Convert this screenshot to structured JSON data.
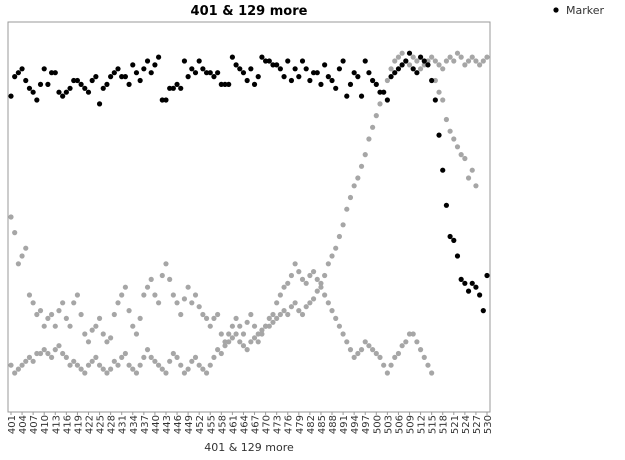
{
  "chart_data": {
    "type": "scatter",
    "title": "401 & 129 more",
    "x_label": "401 & 129 more",
    "categories": [
      "401",
      null,
      null,
      "404",
      null,
      null,
      "407",
      null,
      null,
      "410",
      null,
      null,
      "413",
      null,
      null,
      "416",
      null,
      null,
      "419",
      null,
      null,
      "422",
      null,
      null,
      "425",
      null,
      null,
      "428",
      null,
      null,
      "431",
      null,
      null,
      "434",
      null,
      null,
      "437",
      null,
      null,
      "440",
      null,
      null,
      "443",
      null,
      null,
      "446",
      null,
      null,
      "449",
      null,
      null,
      "452",
      null,
      null,
      "455",
      null,
      null,
      "458",
      null,
      null,
      "461",
      null,
      null,
      "464",
      null,
      null,
      "467",
      null,
      null,
      "470",
      null,
      null,
      "473",
      null,
      null,
      "476",
      null,
      null,
      "479",
      null,
      null,
      "482",
      null,
      null,
      "485",
      null,
      null,
      "488",
      null,
      null,
      "491",
      null,
      null,
      "494",
      null,
      null,
      "497",
      null,
      null,
      "500",
      null,
      null,
      "503",
      null,
      null,
      "506",
      null,
      null,
      "509",
      null,
      null,
      "512",
      null,
      null,
      "515",
      null,
      null,
      "518",
      null,
      null,
      "521",
      null,
      null,
      "524",
      null,
      null,
      "527",
      null,
      null,
      "530"
    ],
    "ylim": [
      0,
      100
    ],
    "series": [
      {
        "color": "#a6a6a6",
        "values": [
          12,
          10,
          11,
          12,
          13,
          14,
          13,
          15,
          15,
          16,
          15,
          14,
          16,
          17,
          15,
          14,
          12,
          13,
          12,
          11,
          10,
          12,
          13,
          14,
          12,
          11,
          10,
          11,
          13,
          12,
          14,
          15,
          12,
          11,
          10,
          12,
          14,
          16,
          14,
          13,
          12,
          11,
          10,
          13,
          15,
          14,
          12,
          10,
          11,
          13,
          14,
          12,
          11,
          10,
          12,
          14,
          16,
          15,
          17,
          18,
          19,
          20,
          18,
          17,
          16,
          18,
          19,
          20,
          21,
          22,
          22,
          23,
          24,
          25,
          26,
          25,
          27,
          28,
          26,
          25,
          27,
          28,
          29,
          31,
          33,
          35,
          38,
          40,
          42,
          45,
          48,
          52,
          55,
          58,
          60,
          63,
          66,
          70,
          73,
          76,
          79,
          82,
          85,
          88,
          90,
          91,
          92,
          90,
          89,
          91,
          90,
          88,
          89,
          90,
          91,
          90,
          89,
          88,
          90,
          91,
          90,
          92,
          91,
          89,
          90,
          91,
          90,
          89,
          90,
          91
        ]
      },
      {
        "color": "#a6a6a6",
        "values": [
          50,
          46,
          38,
          40,
          42,
          30,
          28,
          25,
          26,
          22,
          24,
          25,
          22,
          26,
          28,
          24,
          22,
          28,
          30,
          25,
          20,
          18,
          21,
          22,
          24,
          20,
          18,
          19,
          25,
          28,
          30,
          32,
          26,
          22,
          20,
          24,
          30,
          32,
          34,
          30,
          28,
          35,
          38,
          34,
          30,
          28,
          25,
          29,
          32,
          28,
          30,
          27,
          25,
          24,
          22,
          24,
          25,
          20,
          18,
          20,
          22,
          24,
          22,
          20,
          23,
          25,
          22,
          18,
          20,
          22,
          24,
          25,
          28,
          30,
          32,
          33,
          35,
          38,
          36,
          34,
          33,
          35,
          36,
          34,
          32,
          30,
          28,
          26,
          24,
          22,
          20,
          18,
          16,
          14,
          15,
          16,
          18,
          17,
          16,
          15,
          14,
          12,
          10,
          12,
          14,
          15,
          17,
          18,
          20,
          20,
          18,
          16,
          14,
          12,
          10,
          85,
          82,
          80,
          75,
          72,
          70,
          68,
          66,
          65,
          60,
          62,
          58,
          null,
          null,
          null
        ]
      },
      {
        "name": "Marker",
        "color": "#000000",
        "values": [
          81,
          86,
          87,
          88,
          85,
          83,
          82,
          80,
          84,
          88,
          84,
          87,
          87,
          82,
          81,
          82,
          83,
          85,
          85,
          84,
          83,
          82,
          85,
          86,
          79,
          83,
          84,
          86,
          87,
          88,
          86,
          86,
          84,
          89,
          87,
          85,
          88,
          90,
          87,
          89,
          91,
          80,
          80,
          83,
          83,
          84,
          83,
          90,
          86,
          88,
          87,
          90,
          88,
          87,
          87,
          86,
          87,
          84,
          84,
          84,
          91,
          89,
          88,
          87,
          85,
          88,
          84,
          86,
          91,
          90,
          90,
          89,
          89,
          88,
          86,
          90,
          85,
          88,
          86,
          90,
          88,
          85,
          87,
          87,
          84,
          89,
          86,
          85,
          83,
          88,
          90,
          81,
          84,
          87,
          86,
          81,
          90,
          87,
          85,
          84,
          82,
          82,
          80,
          86,
          87,
          88,
          89,
          90,
          92,
          88,
          87,
          91,
          90,
          89,
          85,
          80,
          71,
          62,
          53,
          45,
          44,
          40,
          34,
          33,
          31,
          33,
          32,
          30,
          26,
          35
        ]
      }
    ]
  }
}
